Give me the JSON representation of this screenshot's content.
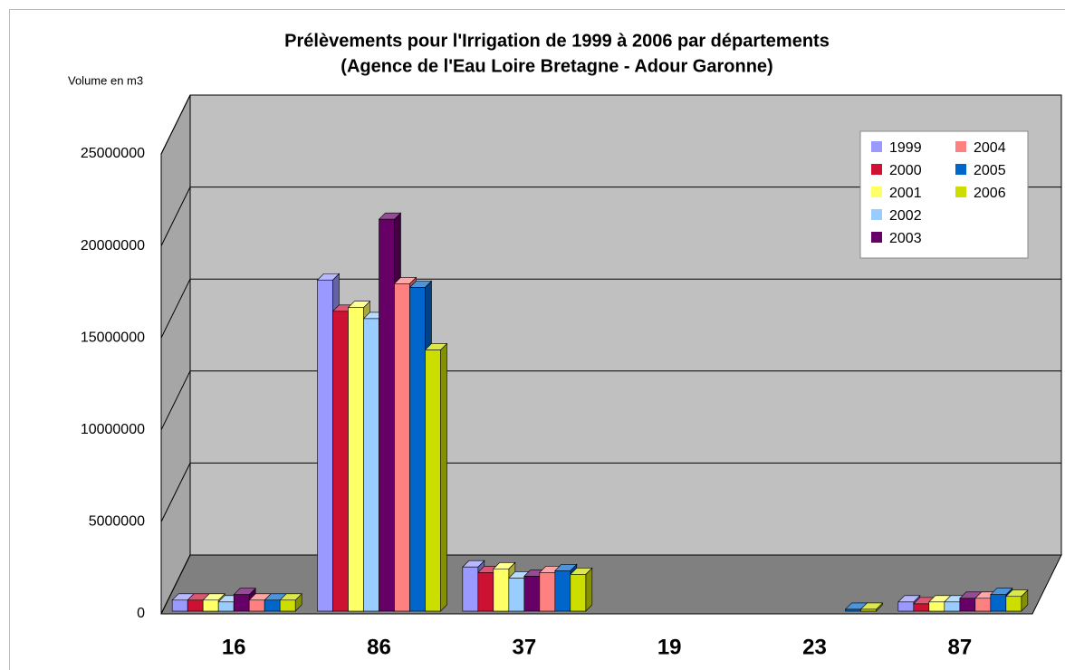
{
  "chart_data": {
    "type": "bar3d",
    "title": "Prélèvements pour l'Irrigation de 1999 à 2006 par départements",
    "subtitle": "(Agence de l'Eau Loire Bretagne - Adour Garonne)",
    "y_axis_label": "Volume en m3",
    "categories": [
      "16",
      "86",
      "37",
      "19",
      "23",
      "87"
    ],
    "series": [
      {
        "name": "1999",
        "color": "#9999ff",
        "values": [
          600000,
          18000000,
          2400000,
          null,
          null,
          500000
        ]
      },
      {
        "name": "2000",
        "color": "#cc1133",
        "values": [
          600000,
          16300000,
          2100000,
          null,
          null,
          400000
        ]
      },
      {
        "name": "2001",
        "color": "#ffff66",
        "values": [
          600000,
          16500000,
          2300000,
          null,
          null,
          500000
        ]
      },
      {
        "name": "2002",
        "color": "#99ccff",
        "values": [
          500000,
          15900000,
          1800000,
          null,
          null,
          500000
        ]
      },
      {
        "name": "2003",
        "color": "#660066",
        "values": [
          900000,
          21300000,
          1900000,
          null,
          null,
          700000
        ]
      },
      {
        "name": "2004",
        "color": "#ff8080",
        "values": [
          600000,
          17800000,
          2100000,
          null,
          null,
          700000
        ]
      },
      {
        "name": "2005",
        "color": "#0066cc",
        "values": [
          600000,
          17600000,
          2200000,
          null,
          100000,
          900000
        ]
      },
      {
        "name": "2006",
        "color": "#ccdd00",
        "values": [
          600000,
          14200000,
          2000000,
          null,
          100000,
          800000
        ]
      }
    ],
    "ylim": [
      0,
      25000000
    ],
    "yticks": [
      0,
      5000000,
      10000000,
      15000000,
      20000000,
      25000000
    ],
    "grid": true,
    "legend": "top-right"
  }
}
